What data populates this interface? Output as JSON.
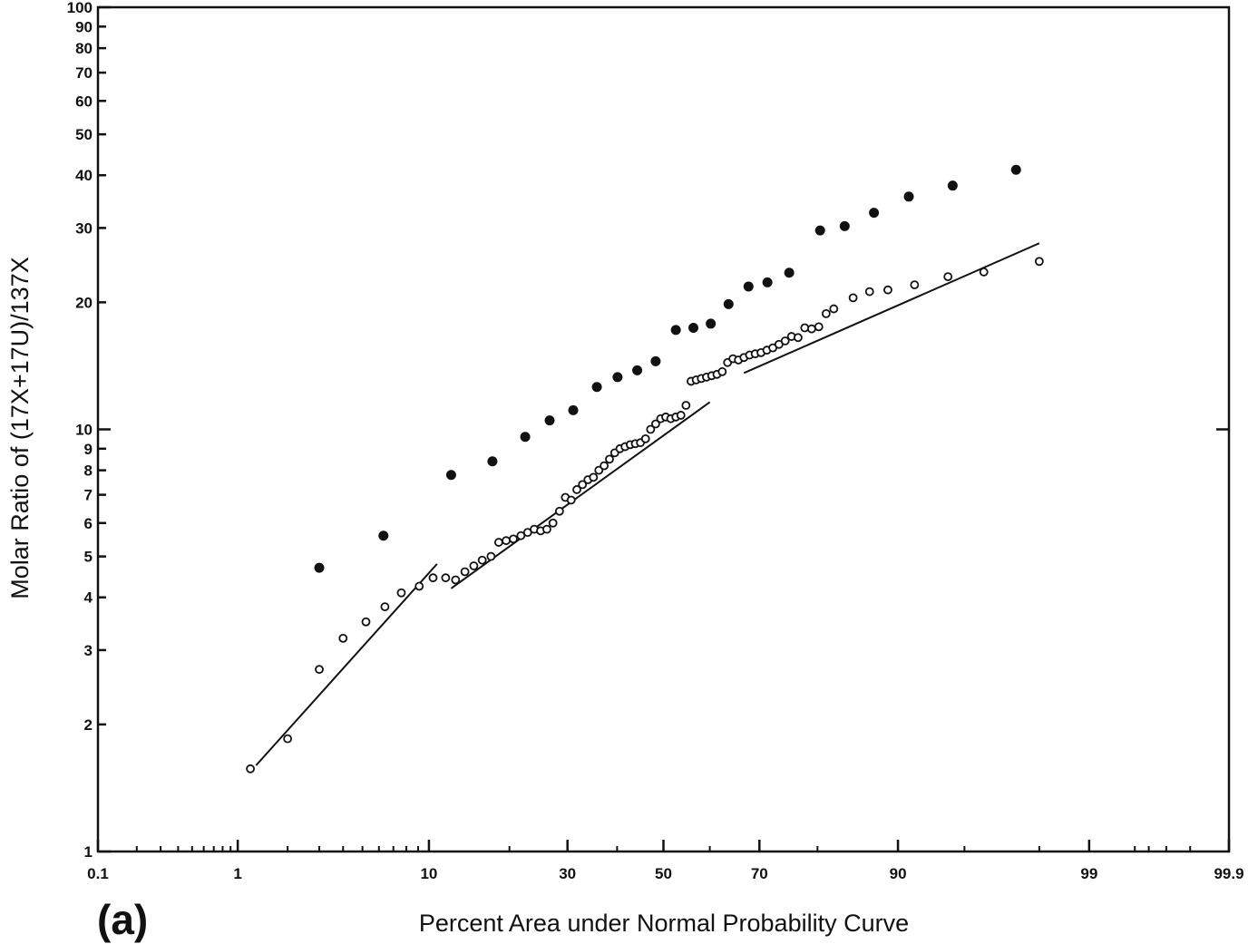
{
  "chart_data": {
    "type": "scatter",
    "title": "",
    "panel_label": "(a)",
    "xlabel": "Percent Area under Normal Probability Curve",
    "ylabel": "Molar Ratio of (17X+17U)/137X",
    "x_scale": "normal-probability",
    "y_scale": "log",
    "xlim": [
      0.1,
      99.9
    ],
    "ylim": [
      1,
      100
    ],
    "x_ticks": [
      "0.1",
      "1",
      "10",
      "30",
      "50",
      "70",
      "90",
      "99",
      "99.9"
    ],
    "y_ticks": [
      "1",
      "2",
      "3",
      "4",
      "5",
      "6",
      "7",
      "8",
      "9",
      "10",
      "20",
      "30",
      "40",
      "50",
      "60",
      "70",
      "80",
      "90",
      "100"
    ],
    "grid": false,
    "legend": "none",
    "series": [
      {
        "marker": "filled-circle",
        "color": "#111111",
        "points": [
          {
            "x": 3,
            "y": 4.7
          },
          {
            "x": 6.3,
            "y": 5.6
          },
          {
            "x": 12.3,
            "y": 7.8
          },
          {
            "x": 17.5,
            "y": 8.4
          },
          {
            "x": 22.5,
            "y": 9.6
          },
          {
            "x": 26.7,
            "y": 10.5
          },
          {
            "x": 31.1,
            "y": 11.1
          },
          {
            "x": 35.8,
            "y": 12.6
          },
          {
            "x": 40.1,
            "y": 13.3
          },
          {
            "x": 44.3,
            "y": 13.8
          },
          {
            "x": 48.3,
            "y": 14.5
          },
          {
            "x": 52.7,
            "y": 17.2
          },
          {
            "x": 56.5,
            "y": 17.4
          },
          {
            "x": 60.2,
            "y": 17.8
          },
          {
            "x": 63.9,
            "y": 19.8
          },
          {
            "x": 67.9,
            "y": 21.8
          },
          {
            "x": 71.5,
            "y": 22.3
          },
          {
            "x": 75.4,
            "y": 23.5
          },
          {
            "x": 80.4,
            "y": 29.6
          },
          {
            "x": 83.9,
            "y": 30.3
          },
          {
            "x": 87.5,
            "y": 32.6
          },
          {
            "x": 91,
            "y": 35.6
          },
          {
            "x": 94.3,
            "y": 37.8
          },
          {
            "x": 97.3,
            "y": 41.2
          }
        ]
      },
      {
        "marker": "open-circle",
        "color": "#111111",
        "points": [
          {
            "x": 1.2,
            "y": 1.57
          },
          {
            "x": 2,
            "y": 1.85
          },
          {
            "x": 3,
            "y": 2.7
          },
          {
            "x": 4,
            "y": 3.2
          },
          {
            "x": 5.2,
            "y": 3.5
          },
          {
            "x": 6.4,
            "y": 3.8
          },
          {
            "x": 7.6,
            "y": 4.1
          },
          {
            "x": 9.1,
            "y": 4.25
          },
          {
            "x": 10.4,
            "y": 4.45
          },
          {
            "x": 11.7,
            "y": 4.45
          },
          {
            "x": 12.8,
            "y": 4.4
          },
          {
            "x": 13.9,
            "y": 4.6
          },
          {
            "x": 15,
            "y": 4.75
          },
          {
            "x": 16.1,
            "y": 4.9
          },
          {
            "x": 17.3,
            "y": 5.0
          },
          {
            "x": 18.4,
            "y": 5.4
          },
          {
            "x": 19.5,
            "y": 5.45
          },
          {
            "x": 20.6,
            "y": 5.5
          },
          {
            "x": 21.8,
            "y": 5.6
          },
          {
            "x": 22.9,
            "y": 5.7
          },
          {
            "x": 24,
            "y": 5.8
          },
          {
            "x": 25.1,
            "y": 5.75
          },
          {
            "x": 26.2,
            "y": 5.8
          },
          {
            "x": 27.3,
            "y": 6.0
          },
          {
            "x": 28.5,
            "y": 6.4
          },
          {
            "x": 29.6,
            "y": 6.9
          },
          {
            "x": 30.7,
            "y": 6.8
          },
          {
            "x": 31.8,
            "y": 7.2
          },
          {
            "x": 32.9,
            "y": 7.4
          },
          {
            "x": 34,
            "y": 7.6
          },
          {
            "x": 35.1,
            "y": 7.7
          },
          {
            "x": 36.2,
            "y": 8.0
          },
          {
            "x": 37.3,
            "y": 8.2
          },
          {
            "x": 38.4,
            "y": 8.5
          },
          {
            "x": 39.5,
            "y": 8.8
          },
          {
            "x": 40.6,
            "y": 9.0
          },
          {
            "x": 41.7,
            "y": 9.1
          },
          {
            "x": 42.8,
            "y": 9.2
          },
          {
            "x": 43.9,
            "y": 9.25
          },
          {
            "x": 45,
            "y": 9.3
          },
          {
            "x": 46.1,
            "y": 9.5
          },
          {
            "x": 47.2,
            "y": 10.0
          },
          {
            "x": 48.3,
            "y": 10.3
          },
          {
            "x": 49.4,
            "y": 10.6
          },
          {
            "x": 50.5,
            "y": 10.7
          },
          {
            "x": 51.6,
            "y": 10.6
          },
          {
            "x": 52.7,
            "y": 10.7
          },
          {
            "x": 53.8,
            "y": 10.8
          },
          {
            "x": 54.9,
            "y": 11.4
          },
          {
            "x": 56,
            "y": 13.0
          },
          {
            "x": 57.1,
            "y": 13.1
          },
          {
            "x": 58.2,
            "y": 13.2
          },
          {
            "x": 59.3,
            "y": 13.3
          },
          {
            "x": 60.4,
            "y": 13.4
          },
          {
            "x": 61.5,
            "y": 13.5
          },
          {
            "x": 62.6,
            "y": 13.7
          },
          {
            "x": 63.7,
            "y": 14.4
          },
          {
            "x": 64.8,
            "y": 14.7
          },
          {
            "x": 65.9,
            "y": 14.6
          },
          {
            "x": 67,
            "y": 14.8
          },
          {
            "x": 68.1,
            "y": 15.0
          },
          {
            "x": 69.2,
            "y": 15.1
          },
          {
            "x": 70.3,
            "y": 15.2
          },
          {
            "x": 71.4,
            "y": 15.4
          },
          {
            "x": 72.5,
            "y": 15.6
          },
          {
            "x": 73.6,
            "y": 15.9
          },
          {
            "x": 74.7,
            "y": 16.2
          },
          {
            "x": 75.8,
            "y": 16.6
          },
          {
            "x": 76.9,
            "y": 16.5
          },
          {
            "x": 78,
            "y": 17.4
          },
          {
            "x": 79.1,
            "y": 17.3
          },
          {
            "x": 80.2,
            "y": 17.5
          },
          {
            "x": 81.3,
            "y": 18.8
          },
          {
            "x": 82.4,
            "y": 19.3
          },
          {
            "x": 85,
            "y": 20.5
          },
          {
            "x": 87,
            "y": 21.2
          },
          {
            "x": 89,
            "y": 21.4
          },
          {
            "x": 91.5,
            "y": 22.0
          },
          {
            "x": 94,
            "y": 23.0
          },
          {
            "x": 96,
            "y": 23.6
          },
          {
            "x": 98,
            "y": 25.0
          }
        ]
      }
    ],
    "fit_lines": [
      {
        "from": {
          "x": 1.3,
          "y": 1.6
        },
        "to": {
          "x": 10.8,
          "y": 4.8
        }
      },
      {
        "from": {
          "x": 12.3,
          "y": 4.2
        },
        "to": {
          "x": 60,
          "y": 11.6
        }
      },
      {
        "from": {
          "x": 67,
          "y": 13.6
        },
        "to": {
          "x": 98,
          "y": 27.6
        }
      }
    ]
  }
}
